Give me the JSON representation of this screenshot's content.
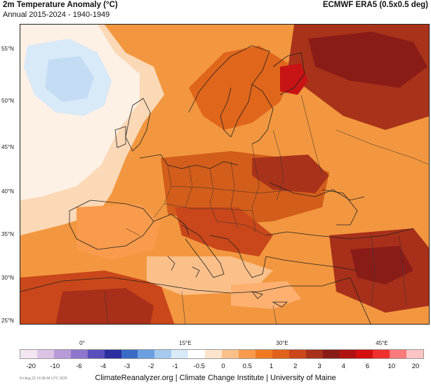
{
  "header": {
    "title": "2m Temperature Anomaly (°C)",
    "subtitle": "Annual 2015-2024 - 1940-1949",
    "source": "ECMWF ERA5 (0.5x0.5 deg)"
  },
  "axes": {
    "latitudes": [
      "55°N",
      "50°N",
      "45°N",
      "40°N",
      "35°N",
      "30°N",
      "25°N"
    ],
    "longitudes": [
      "0°",
      "15°E",
      "30°E",
      "45°E"
    ]
  },
  "colorbar": {
    "ticks": [
      "-20",
      "-10",
      "-6",
      "-4",
      "-3",
      "-2",
      "-1",
      "-0.5",
      "0",
      "0.5",
      "1",
      "2",
      "3",
      "4",
      "6",
      "10",
      "20"
    ],
    "colors": [
      "#f3e6f2",
      "#dcc3e6",
      "#b89ad8",
      "#8d76cc",
      "#5b4fbe",
      "#2a2e9f",
      "#3a6cc6",
      "#6c9fe0",
      "#a6c9ef",
      "#d8e9f8",
      "#ffffff",
      "#fde4cc",
      "#fbc08a",
      "#f89b4c",
      "#ef7a22",
      "#e0611a",
      "#c9471a",
      "#a8301a",
      "#8a1c18",
      "#b01212",
      "#d41010",
      "#f03030",
      "#f87a7a",
      "#fcc4c4"
    ]
  },
  "footer": {
    "timestamp": "Fri Aug 22 14:38:44 UTC 2025",
    "credits": "ClimateReanalyzer.org | Climate Change Institute | University of Maine"
  }
}
